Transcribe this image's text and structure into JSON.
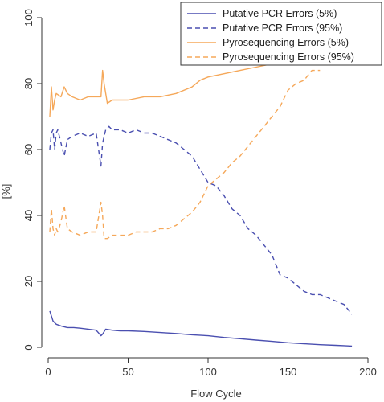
{
  "chart_data": {
    "type": "line",
    "title": "",
    "xlabel": "Flow Cycle",
    "ylabel": "[%]",
    "xlim": [
      0,
      200
    ],
    "ylim": [
      0,
      100
    ],
    "x_ticks": [
      "0",
      "50",
      "100",
      "150",
      "200"
    ],
    "y_ticks": [
      "0",
      "20",
      "40",
      "60",
      "80",
      "100"
    ],
    "grid": false,
    "legend_position": "top-right",
    "colors": {
      "blue": "#4a4fb0",
      "orange": "#f5a85a"
    },
    "series": [
      {
        "name": "Putative PCR Errors (5%)",
        "color": "#4a4fb0",
        "dash": "solid",
        "x": [
          1,
          3,
          5,
          8,
          12,
          16,
          20,
          25,
          30,
          33,
          34,
          36,
          40,
          45,
          50,
          60,
          70,
          80,
          90,
          100,
          110,
          120,
          130,
          140,
          150,
          160,
          170,
          180,
          185,
          190
        ],
        "y": [
          11,
          8,
          7,
          6.5,
          6,
          6,
          5.8,
          5.5,
          5.2,
          3.5,
          4,
          5.5,
          5.2,
          5,
          5,
          4.8,
          4.5,
          4.2,
          3.8,
          3.5,
          3,
          2.6,
          2.2,
          1.8,
          1.4,
          1.1,
          0.8,
          0.6,
          0.5,
          0.4
        ]
      },
      {
        "name": "Putative PCR Errors (95%)",
        "color": "#4a4fb0",
        "dash": "dashed",
        "x": [
          1,
          2,
          3,
          4,
          5,
          6,
          8,
          10,
          12,
          15,
          20,
          25,
          30,
          33,
          34,
          36,
          38,
          40,
          45,
          50,
          55,
          60,
          65,
          70,
          75,
          80,
          85,
          90,
          95,
          100,
          105,
          110,
          115,
          120,
          125,
          130,
          135,
          140,
          145,
          150,
          155,
          160,
          165,
          170,
          175,
          180,
          185,
          190
        ],
        "y": [
          60,
          65,
          66,
          60,
          65,
          66,
          62,
          58,
          63,
          64,
          65,
          64,
          65,
          55,
          62,
          66,
          67,
          66,
          66,
          65,
          66,
          65,
          65,
          64,
          63,
          62,
          60,
          58,
          54,
          50,
          49,
          46,
          42,
          40,
          36,
          34,
          31,
          28,
          22,
          21,
          19,
          17,
          16,
          16,
          15,
          14,
          13,
          10
        ]
      },
      {
        "name": "Pyrosequencing Errors (5%)",
        "color": "#f5a85a",
        "dash": "solid",
        "x": [
          1,
          2,
          3,
          4,
          5,
          8,
          10,
          12,
          15,
          20,
          25,
          30,
          33,
          34,
          35,
          37,
          40,
          50,
          60,
          70,
          80,
          90,
          95,
          100,
          110,
          120,
          130,
          140,
          150,
          160,
          170,
          180,
          190
        ],
        "y": [
          70,
          79,
          72,
          75,
          77,
          76,
          79,
          77,
          76,
          75,
          76,
          76,
          76,
          84,
          80,
          74,
          75,
          75,
          76,
          76,
          77,
          79,
          81,
          82,
          83,
          84,
          85,
          86,
          87,
          88,
          89,
          90,
          91
        ]
      },
      {
        "name": "Pyrosequencing Errors (95%)",
        "color": "#f5a85a",
        "dash": "dashed",
        "x": [
          1,
          2,
          3,
          4,
          5,
          6,
          8,
          10,
          12,
          15,
          20,
          25,
          30,
          33,
          34,
          35,
          37,
          40,
          45,
          50,
          55,
          60,
          65,
          70,
          75,
          80,
          85,
          90,
          95,
          100,
          105,
          110,
          115,
          120,
          125,
          130,
          135,
          140,
          145,
          150,
          155,
          160,
          165,
          170
        ],
        "y": [
          35,
          42,
          36,
          34,
          36,
          35,
          38,
          43,
          36,
          35,
          34,
          35,
          35,
          44,
          40,
          33,
          33,
          34,
          34,
          34,
          35,
          35,
          35,
          36,
          36,
          37,
          39,
          41,
          44,
          49,
          51,
          53,
          56,
          58,
          61,
          64,
          67,
          70,
          73,
          78,
          80,
          81,
          84,
          84
        ]
      }
    ]
  }
}
